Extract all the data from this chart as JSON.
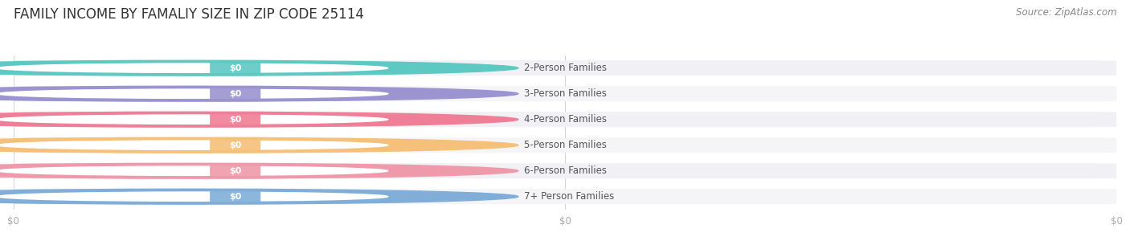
{
  "title": "FAMILY INCOME BY FAMALIY SIZE IN ZIP CODE 25114",
  "source_text": "Source: ZipAtlas.com",
  "categories": [
    "2-Person Families",
    "3-Person Families",
    "4-Person Families",
    "5-Person Families",
    "6-Person Families",
    "7+ Person Families"
  ],
  "values": [
    0,
    0,
    0,
    0,
    0,
    0
  ],
  "bar_colors": [
    "#5ec8c2",
    "#9b94d1",
    "#ef7f96",
    "#f5c07a",
    "#ef9aaa",
    "#80aed8"
  ],
  "value_labels": [
    "$0",
    "$0",
    "$0",
    "$0",
    "$0",
    "$0"
  ],
  "x_tick_positions": [
    0.0,
    0.5,
    1.0
  ],
  "x_tick_labels": [
    "$0",
    "$0",
    "$0"
  ],
  "background_color": "#ffffff",
  "title_fontsize": 12,
  "source_fontsize": 8.5,
  "label_fontsize": 8.5,
  "xlim": [
    0,
    1
  ],
  "bar_bg_color": "#f0f0f5",
  "bar_bg_light": "#f5f5f8"
}
